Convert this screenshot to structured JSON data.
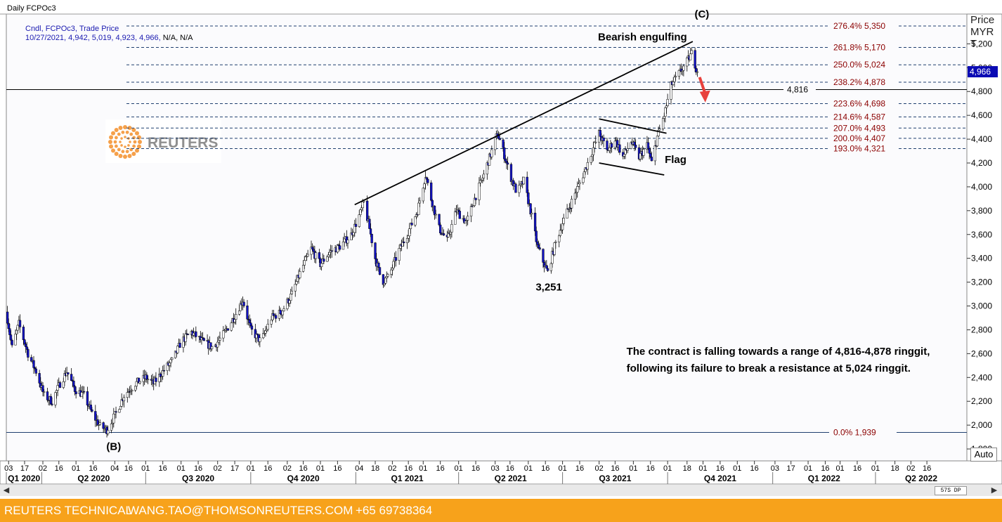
{
  "window_title": "Daily FCPOc3",
  "legend": {
    "line1": "Cndl, FCPOc3, Trade Price",
    "line2_values": "10/27/2021, 4,942, 5,019, 4,923, 4,966,",
    "line2_na": "N/A, N/A"
  },
  "price_header": [
    "Price",
    "MYR",
    "T"
  ],
  "auto_button": "Auto",
  "scroll_label": "57S DP",
  "watermark": "REUTERS",
  "footer": {
    "brand": "REUTERS TECHNICAL",
    "email": "WANG.TAO@THOMSONREUTERS.COM",
    "phone": "+65 69738364"
  },
  "colors": {
    "bull_candle": "#ffffff",
    "bear_candle": "#1414c8",
    "fib_label": "#8b0000",
    "fib_line": "#1f3f6f",
    "footer_bg": "#f7a21b",
    "arrow": "#e8413c",
    "legend_text": "#1a1ab0"
  },
  "chart_data": {
    "type": "candlestick",
    "instrument": "FCPOc3",
    "ylabel": "Price MYR",
    "ylim": [
      1700,
      5450
    ],
    "yticks": [
      1800,
      2000,
      2200,
      2400,
      2600,
      2800,
      3000,
      3200,
      3400,
      3600,
      3800,
      4000,
      4200,
      4400,
      4600,
      4800,
      5000,
      5200
    ],
    "ytick_labels": [
      "1,800",
      "2,000",
      "2,200",
      "2,400",
      "2,600",
      "2,800",
      "3,000",
      "3,200",
      "3,400",
      "3,600",
      "3,800",
      "4,000",
      "4,200",
      "4,400",
      "4,600",
      "4,800",
      "5,000",
      "5,200"
    ],
    "current_price_label": "4,966",
    "x_start": "2020-03-01",
    "x_end": "2022-06-20",
    "day_ticks": [
      {
        "date": "2020-03-03",
        "label": "03"
      },
      {
        "date": "2020-03-17",
        "label": "17"
      },
      {
        "date": "2020-04-02",
        "label": "02"
      },
      {
        "date": "2020-04-16",
        "label": "16"
      },
      {
        "date": "2020-05-01",
        "label": "01"
      },
      {
        "date": "2020-05-16",
        "label": "16"
      },
      {
        "date": "2020-06-04",
        "label": "04"
      },
      {
        "date": "2020-06-16",
        "label": "16"
      },
      {
        "date": "2020-07-01",
        "label": "01"
      },
      {
        "date": "2020-07-16",
        "label": "16"
      },
      {
        "date": "2020-08-01",
        "label": "01"
      },
      {
        "date": "2020-08-16",
        "label": "16"
      },
      {
        "date": "2020-09-02",
        "label": "02"
      },
      {
        "date": "2020-09-17",
        "label": "17"
      },
      {
        "date": "2020-10-01",
        "label": "01"
      },
      {
        "date": "2020-10-16",
        "label": "16"
      },
      {
        "date": "2020-11-02",
        "label": "02"
      },
      {
        "date": "2020-11-16",
        "label": "16"
      },
      {
        "date": "2020-12-01",
        "label": "01"
      },
      {
        "date": "2020-12-16",
        "label": "16"
      },
      {
        "date": "2021-01-04",
        "label": "04"
      },
      {
        "date": "2021-01-18",
        "label": "18"
      },
      {
        "date": "2021-02-02",
        "label": "02"
      },
      {
        "date": "2021-02-16",
        "label": "16"
      },
      {
        "date": "2021-03-01",
        "label": "01"
      },
      {
        "date": "2021-03-16",
        "label": "16"
      },
      {
        "date": "2021-04-01",
        "label": "01"
      },
      {
        "date": "2021-04-16",
        "label": "16"
      },
      {
        "date": "2021-05-03",
        "label": "03"
      },
      {
        "date": "2021-05-16",
        "label": "16"
      },
      {
        "date": "2021-06-01",
        "label": "01"
      },
      {
        "date": "2021-06-16",
        "label": "16"
      },
      {
        "date": "2021-07-01",
        "label": "01"
      },
      {
        "date": "2021-07-16",
        "label": "16"
      },
      {
        "date": "2021-08-02",
        "label": "02"
      },
      {
        "date": "2021-08-16",
        "label": "16"
      },
      {
        "date": "2021-09-01",
        "label": "01"
      },
      {
        "date": "2021-09-16",
        "label": "16"
      },
      {
        "date": "2021-10-01",
        "label": "01"
      },
      {
        "date": "2021-10-18",
        "label": "18"
      },
      {
        "date": "2021-11-01",
        "label": "01"
      },
      {
        "date": "2021-11-16",
        "label": "16"
      },
      {
        "date": "2021-12-01",
        "label": "01"
      },
      {
        "date": "2021-12-16",
        "label": "16"
      },
      {
        "date": "2022-01-03",
        "label": "03"
      },
      {
        "date": "2022-01-17",
        "label": "17"
      },
      {
        "date": "2022-02-01",
        "label": "01"
      },
      {
        "date": "2022-02-16",
        "label": "16"
      },
      {
        "date": "2022-03-01",
        "label": "01"
      },
      {
        "date": "2022-03-16",
        "label": "16"
      },
      {
        "date": "2022-04-01",
        "label": "01"
      },
      {
        "date": "2022-04-18",
        "label": "18"
      },
      {
        "date": "2022-05-02",
        "label": "02"
      },
      {
        "date": "2022-05-16",
        "label": "16"
      }
    ],
    "quarter_labels": [
      {
        "label": "Q1 2020",
        "start": "2020-03-01",
        "end": "2020-04-01"
      },
      {
        "label": "Q2 2020",
        "start": "2020-04-01",
        "end": "2020-07-01"
      },
      {
        "label": "Q3 2020",
        "start": "2020-07-01",
        "end": "2020-10-01"
      },
      {
        "label": "Q4 2020",
        "start": "2020-10-01",
        "end": "2021-01-01"
      },
      {
        "label": "Q1 2021",
        "start": "2021-01-01",
        "end": "2021-04-01"
      },
      {
        "label": "Q2 2021",
        "start": "2021-04-01",
        "end": "2021-07-01"
      },
      {
        "label": "Q3 2021",
        "start": "2021-07-01",
        "end": "2021-10-01"
      },
      {
        "label": "Q4 2021",
        "start": "2021-10-01",
        "end": "2022-01-01"
      },
      {
        "label": "Q1 2022",
        "start": "2022-01-01",
        "end": "2022-04-01"
      },
      {
        "label": "Q2 2022",
        "start": "2022-04-01",
        "end": "2022-06-20"
      }
    ],
    "price_path": [
      {
        "date": "2020-03-01",
        "price": 2950
      },
      {
        "date": "2020-03-06",
        "price": 2650
      },
      {
        "date": "2020-03-12",
        "price": 2850
      },
      {
        "date": "2020-03-20",
        "price": 2600
      },
      {
        "date": "2020-03-27",
        "price": 2450
      },
      {
        "date": "2020-04-03",
        "price": 2250
      },
      {
        "date": "2020-04-10",
        "price": 2200
      },
      {
        "date": "2020-04-17",
        "price": 2350
      },
      {
        "date": "2020-04-23",
        "price": 2450
      },
      {
        "date": "2020-04-30",
        "price": 2300
      },
      {
        "date": "2020-05-08",
        "price": 2250
      },
      {
        "date": "2020-05-15",
        "price": 2100
      },
      {
        "date": "2020-05-22",
        "price": 1990
      },
      {
        "date": "2020-05-28",
        "price": 1960
      },
      {
        "date": "2020-06-05",
        "price": 2100
      },
      {
        "date": "2020-06-12",
        "price": 2250
      },
      {
        "date": "2020-06-22",
        "price": 2350
      },
      {
        "date": "2020-07-01",
        "price": 2400
      },
      {
        "date": "2020-07-08",
        "price": 2350
      },
      {
        "date": "2020-07-16",
        "price": 2450
      },
      {
        "date": "2020-07-25",
        "price": 2550
      },
      {
        "date": "2020-08-01",
        "price": 2700
      },
      {
        "date": "2020-08-10",
        "price": 2780
      },
      {
        "date": "2020-08-20",
        "price": 2700
      },
      {
        "date": "2020-08-29",
        "price": 2650
      },
      {
        "date": "2020-09-07",
        "price": 2760
      },
      {
        "date": "2020-09-16",
        "price": 2900
      },
      {
        "date": "2020-09-24",
        "price": 3050
      },
      {
        "date": "2020-10-01",
        "price": 2800
      },
      {
        "date": "2020-10-10",
        "price": 2700
      },
      {
        "date": "2020-10-19",
        "price": 2900
      },
      {
        "date": "2020-10-28",
        "price": 2950
      },
      {
        "date": "2020-11-06",
        "price": 3100
      },
      {
        "date": "2020-11-14",
        "price": 3300
      },
      {
        "date": "2020-11-23",
        "price": 3480
      },
      {
        "date": "2020-12-01",
        "price": 3350
      },
      {
        "date": "2020-12-09",
        "price": 3450
      },
      {
        "date": "2020-12-18",
        "price": 3500
      },
      {
        "date": "2020-12-28",
        "price": 3600
      },
      {
        "date": "2021-01-05",
        "price": 3780
      },
      {
        "date": "2021-01-08",
        "price": 3870
      },
      {
        "date": "2021-01-13",
        "price": 3650
      },
      {
        "date": "2021-01-18",
        "price": 3400
      },
      {
        "date": "2021-01-24",
        "price": 3200
      },
      {
        "date": "2021-01-30",
        "price": 3250
      },
      {
        "date": "2021-02-07",
        "price": 3450
      },
      {
        "date": "2021-02-15",
        "price": 3600
      },
      {
        "date": "2021-02-24",
        "price": 3800
      },
      {
        "date": "2021-03-03",
        "price": 4100
      },
      {
        "date": "2021-03-08",
        "price": 3900
      },
      {
        "date": "2021-03-15",
        "price": 3650
      },
      {
        "date": "2021-03-22",
        "price": 3550
      },
      {
        "date": "2021-03-30",
        "price": 3800
      },
      {
        "date": "2021-04-08",
        "price": 3700
      },
      {
        "date": "2021-04-15",
        "price": 3900
      },
      {
        "date": "2021-04-23",
        "price": 4100
      },
      {
        "date": "2021-04-30",
        "price": 4300
      },
      {
        "date": "2021-05-05",
        "price": 4450
      },
      {
        "date": "2021-05-10",
        "price": 4300
      },
      {
        "date": "2021-05-16",
        "price": 4100
      },
      {
        "date": "2021-05-22",
        "price": 3950
      },
      {
        "date": "2021-05-28",
        "price": 4050
      },
      {
        "date": "2021-06-03",
        "price": 3800
      },
      {
        "date": "2021-06-09",
        "price": 3500
      },
      {
        "date": "2021-06-15",
        "price": 3350
      },
      {
        "date": "2021-06-18",
        "price": 3280
      },
      {
        "date": "2021-06-24",
        "price": 3500
      },
      {
        "date": "2021-07-01",
        "price": 3700
      },
      {
        "date": "2021-07-10",
        "price": 3900
      },
      {
        "date": "2021-07-19",
        "price": 4100
      },
      {
        "date": "2021-07-27",
        "price": 4300
      },
      {
        "date": "2021-08-02",
        "price": 4450
      },
      {
        "date": "2021-08-09",
        "price": 4300
      },
      {
        "date": "2021-08-16",
        "price": 4400
      },
      {
        "date": "2021-08-23",
        "price": 4250
      },
      {
        "date": "2021-08-30",
        "price": 4380
      },
      {
        "date": "2021-09-06",
        "price": 4250
      },
      {
        "date": "2021-09-13",
        "price": 4350
      },
      {
        "date": "2021-09-17",
        "price": 4200
      },
      {
        "date": "2021-09-22",
        "price": 4420
      },
      {
        "date": "2021-09-28",
        "price": 4600
      },
      {
        "date": "2021-10-04",
        "price": 4850
      },
      {
        "date": "2021-10-11",
        "price": 4950
      },
      {
        "date": "2021-10-18",
        "price": 5050
      },
      {
        "date": "2021-10-22",
        "price": 5120
      },
      {
        "date": "2021-10-27",
        "price": 4966
      }
    ],
    "fib_levels": [
      {
        "label": "276.4% 5,350",
        "price": 5350
      },
      {
        "label": "261.8% 5,170",
        "price": 5170
      },
      {
        "label": "250.0% 5,024",
        "price": 5024
      },
      {
        "label": "238.2% 4,878",
        "price": 4878
      },
      {
        "label": "223.6% 4,698",
        "price": 4698
      },
      {
        "label": "214.6% 4,587",
        "price": 4587
      },
      {
        "label": "207.0% 4,493",
        "price": 4493
      },
      {
        "label": "200.0% 4,407",
        "price": 4407
      },
      {
        "label": "193.0% 4,321",
        "price": 4321
      },
      {
        "label": "0.0%   1,939",
        "price": 1939
      }
    ],
    "horizontal_line": {
      "price": 4816,
      "label": "4,816"
    },
    "trendlines": [
      {
        "name": "resistance-trendline",
        "from": {
          "date": "2020-12-31",
          "price": 3850
        },
        "to": {
          "date": "2021-10-23",
          "price": 5220
        }
      },
      {
        "name": "flag-upper",
        "from": {
          "date": "2021-08-02",
          "price": 4570
        },
        "to": {
          "date": "2021-09-30",
          "price": 4450
        }
      },
      {
        "name": "flag-lower",
        "from": {
          "date": "2021-08-02",
          "price": 4200
        },
        "to": {
          "date": "2021-09-28",
          "price": 4100
        }
      }
    ],
    "annotations": [
      {
        "text": "(C)",
        "date": "2021-10-31",
        "price": 5420,
        "bold": true
      },
      {
        "text": "Bearish engulfing",
        "date": "2021-09-09",
        "price": 5230,
        "bold": true
      },
      {
        "text": "Flag",
        "date": "2021-10-08",
        "price": 4200,
        "bold": true
      },
      {
        "text": "3,251",
        "date": "2021-06-19",
        "price": 3130,
        "bold": true
      },
      {
        "text": "(B)",
        "date": "2020-06-03",
        "price": 1790,
        "bold": true
      },
      {
        "text": "The contract is falling towards a range of 4,816-4,878 ringgit,",
        "date": "2021-08-26",
        "price": 2590,
        "bold": true,
        "anchor": "start"
      },
      {
        "text": "following its failure to break a resistance at 5,024 ringgit.",
        "date": "2021-08-26",
        "price": 2450,
        "bold": true,
        "anchor": "start"
      }
    ],
    "arrow": {
      "from": {
        "date": "2021-10-29",
        "price": 4920
      },
      "to": {
        "date": "2021-11-03",
        "price": 4720
      }
    }
  }
}
